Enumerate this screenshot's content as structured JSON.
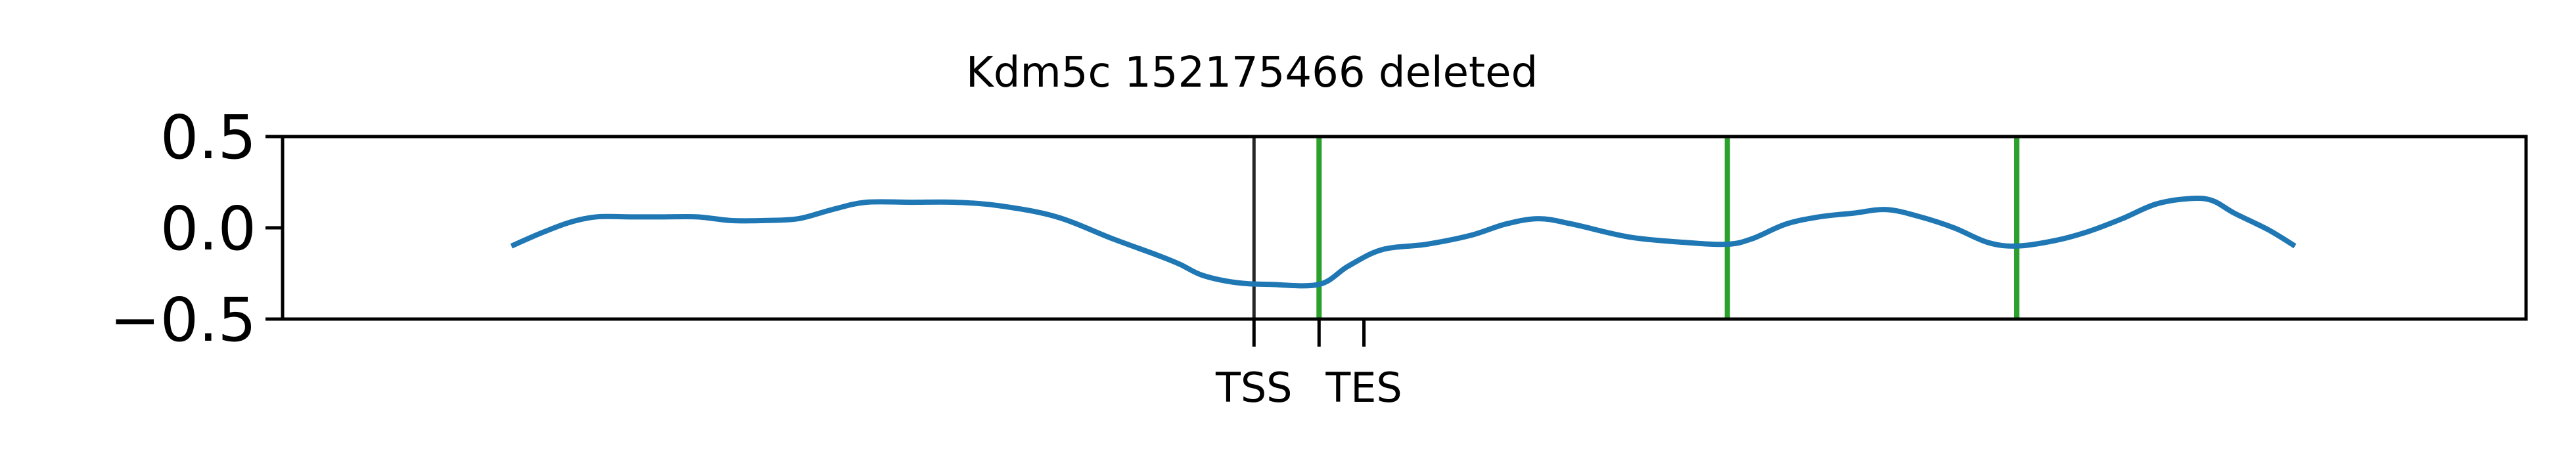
{
  "chart_data": {
    "type": "line",
    "title": "Kdm5c 152175466 deleted",
    "xlabel": "",
    "ylabel": "",
    "xlim": [
      0,
      1
    ],
    "ylim": [
      -0.5,
      0.5
    ],
    "grid": false,
    "y_ticks": [
      {
        "value": 0.5,
        "label": "0.5"
      },
      {
        "value": 0.0,
        "label": "0.0"
      },
      {
        "value": -0.5,
        "label": "−0.5"
      }
    ],
    "x_ticks": [
      {
        "value": 0.433,
        "label": "TSS"
      },
      {
        "value": 0.462,
        "label": ""
      },
      {
        "value": 0.482,
        "label": "TES"
      }
    ],
    "gene_marker": {
      "x": 0.433,
      "color": "#262626"
    },
    "deletion_markers": {
      "color": "#2ca02c",
      "x": [
        0.462,
        0.644,
        0.773
      ]
    },
    "series": [
      {
        "color": "#1f77b4",
        "x": [
          0.102,
          0.115,
          0.128,
          0.14,
          0.155,
          0.17,
          0.185,
          0.2,
          0.215,
          0.23,
          0.245,
          0.26,
          0.28,
          0.3,
          0.32,
          0.345,
          0.37,
          0.39,
          0.4,
          0.41,
          0.425,
          0.44,
          0.462,
          0.475,
          0.49,
          0.51,
          0.53,
          0.545,
          0.56,
          0.575,
          0.6,
          0.625,
          0.644,
          0.655,
          0.67,
          0.685,
          0.7,
          0.715,
          0.73,
          0.745,
          0.76,
          0.773,
          0.79,
          0.805,
          0.82,
          0.835,
          0.85,
          0.86,
          0.87,
          0.885,
          0.897
        ],
        "y": [
          -0.1,
          -0.03,
          0.03,
          0.06,
          0.06,
          0.06,
          0.06,
          0.04,
          0.04,
          0.05,
          0.1,
          0.14,
          0.14,
          0.14,
          0.12,
          0.06,
          -0.06,
          -0.15,
          -0.2,
          -0.26,
          -0.3,
          -0.31,
          -0.31,
          -0.21,
          -0.12,
          -0.09,
          -0.04,
          0.02,
          0.05,
          0.02,
          -0.05,
          -0.08,
          -0.09,
          -0.06,
          0.02,
          0.06,
          0.08,
          0.1,
          0.06,
          0.0,
          -0.08,
          -0.1,
          -0.07,
          -0.02,
          0.05,
          0.13,
          0.16,
          0.15,
          0.08,
          -0.01,
          -0.1
        ]
      }
    ]
  }
}
